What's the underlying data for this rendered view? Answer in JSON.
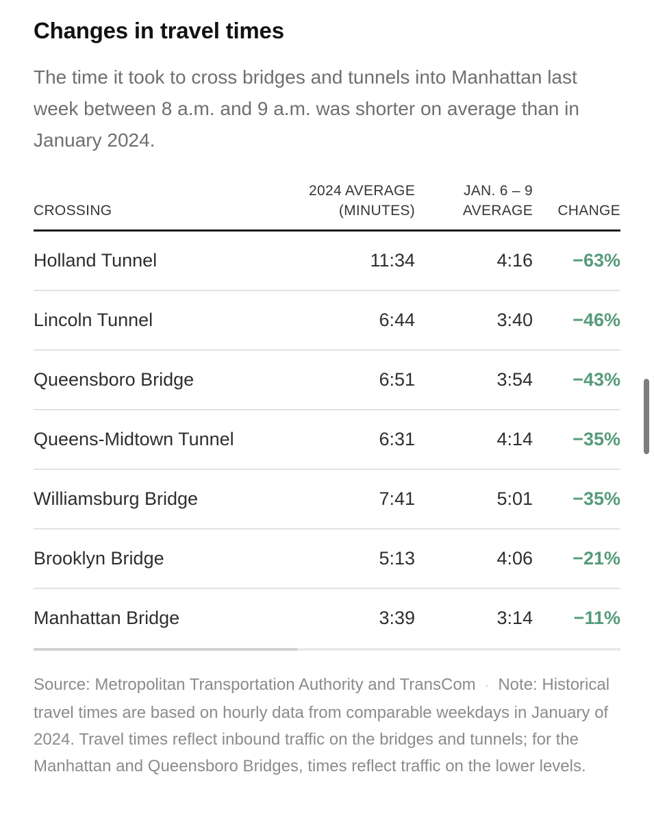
{
  "colors": {
    "accent_green": "#569b7b",
    "title_color": "#121212",
    "subtitle_color": "#6f6f6f",
    "body_text": "#2e2e2e",
    "header_text": "#363636",
    "footer_text": "#8b8b8b",
    "row_divider": "#e2e2e2",
    "header_rule": "#1a1a1a",
    "scrollbar": "#7d7d7d"
  },
  "header": {
    "title": "Changes in travel times",
    "subtitle": "The time it took to cross bridges and tunnels into Manhattan last week between 8 a.m. and 9 a.m. was shorter on average than in January 2024."
  },
  "table": {
    "col_headers": {
      "crossing": "CROSSING",
      "avg2024_line1": "2024 AVERAGE",
      "avg2024_line2": "(MINUTES)",
      "jan_line1": "JAN. 6 – 9",
      "jan_line2": "AVERAGE",
      "change": "CHANGE"
    },
    "rows": [
      {
        "crossing": "Holland Tunnel",
        "avg_2024": "11:34",
        "jan_6_9": "4:16",
        "change": "−63%"
      },
      {
        "crossing": "Lincoln Tunnel",
        "avg_2024": "6:44",
        "jan_6_9": "3:40",
        "change": "−46%"
      },
      {
        "crossing": "Queensboro Bridge",
        "avg_2024": "6:51",
        "jan_6_9": "3:54",
        "change": "−43%"
      },
      {
        "crossing": "Queens-Midtown Tunnel",
        "avg_2024": "6:31",
        "jan_6_9": "4:14",
        "change": "−35%"
      },
      {
        "crossing": "Williamsburg Bridge",
        "avg_2024": "7:41",
        "jan_6_9": "5:01",
        "change": "−35%"
      },
      {
        "crossing": "Brooklyn Bridge",
        "avg_2024": "5:13",
        "jan_6_9": "4:06",
        "change": "−21%"
      },
      {
        "crossing": "Manhattan Bridge",
        "avg_2024": "3:39",
        "jan_6_9": "3:14",
        "change": "−11%"
      }
    ]
  },
  "footer": {
    "source": "Source: Metropolitan Transportation Authority and TransCom",
    "separator": "·",
    "note": "Note: Historical travel times are based on hourly data from comparable weekdays in January of 2024. Travel times reflect inbound traffic on the bridges and tunnels; for the Manhattan and Queensboro Bridges, times reflect traffic on the lower levels."
  },
  "chart_data": {
    "type": "table",
    "title": "Changes in travel times",
    "subtitle": "The time it took to cross bridges and tunnels into Manhattan last week between 8 a.m. and 9 a.m. was shorter on average than in January 2024.",
    "columns": [
      "Crossing",
      "2024 average (minutes)",
      "Jan. 6 – 9 average",
      "Change"
    ],
    "rows": [
      {
        "crossing": "Holland Tunnel",
        "avg_2024_minutes": "11:34",
        "jan_6_9_average": "4:16",
        "change_pct": -63
      },
      {
        "crossing": "Lincoln Tunnel",
        "avg_2024_minutes": "6:44",
        "jan_6_9_average": "3:40",
        "change_pct": -46
      },
      {
        "crossing": "Queensboro Bridge",
        "avg_2024_minutes": "6:51",
        "jan_6_9_average": "3:54",
        "change_pct": -43
      },
      {
        "crossing": "Queens-Midtown Tunnel",
        "avg_2024_minutes": "6:31",
        "jan_6_9_average": "4:14",
        "change_pct": -35
      },
      {
        "crossing": "Williamsburg Bridge",
        "avg_2024_minutes": "7:41",
        "jan_6_9_average": "5:01",
        "change_pct": -35
      },
      {
        "crossing": "Brooklyn Bridge",
        "avg_2024_minutes": "5:13",
        "jan_6_9_average": "4:06",
        "change_pct": -21
      },
      {
        "crossing": "Manhattan Bridge",
        "avg_2024_minutes": "3:39",
        "jan_6_9_average": "3:14",
        "change_pct": -11
      }
    ],
    "source": "Metropolitan Transportation Authority and TransCom",
    "note": "Historical travel times are based on hourly data from comparable weekdays in January of 2024. Travel times reflect inbound traffic on the bridges and tunnels; for the Manhattan and Queensboro Bridges, times reflect traffic on the lower levels."
  }
}
